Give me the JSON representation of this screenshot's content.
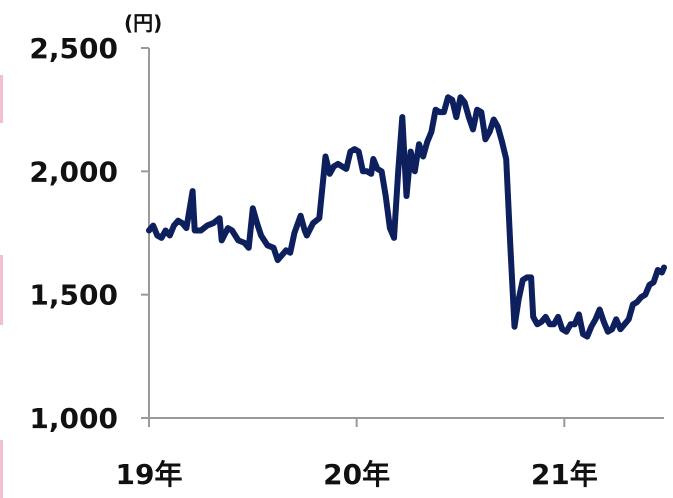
{
  "chart_data": {
    "type": "line",
    "title": "",
    "unit_label": "(円)",
    "xlabel": "",
    "ylabel": "",
    "ylim": [
      1000,
      2500
    ],
    "yticks": [
      {
        "value": 1000,
        "label": "1,000"
      },
      {
        "value": 1500,
        "label": "1,500"
      },
      {
        "value": 2000,
        "label": "2,000"
      },
      {
        "value": 2500,
        "label": "2,500"
      }
    ],
    "xticks": [
      {
        "value": 2019,
        "label": "19年"
      },
      {
        "value": 2020,
        "label": "20年"
      },
      {
        "value": 2021,
        "label": "21年"
      }
    ],
    "xlim": [
      2019.0,
      2021.48
    ],
    "grid": false,
    "line_color": "#0d1f5c",
    "series": [
      {
        "name": "",
        "points": [
          [
            2019.0,
            1760
          ],
          [
            2019.02,
            1780
          ],
          [
            2019.04,
            1740
          ],
          [
            2019.06,
            1730
          ],
          [
            2019.08,
            1760
          ],
          [
            2019.1,
            1740
          ],
          [
            2019.12,
            1780
          ],
          [
            2019.14,
            1800
          ],
          [
            2019.16,
            1790
          ],
          [
            2019.18,
            1770
          ],
          [
            2019.21,
            1920
          ],
          [
            2019.22,
            1760
          ],
          [
            2019.25,
            1760
          ],
          [
            2019.28,
            1780
          ],
          [
            2019.31,
            1790
          ],
          [
            2019.34,
            1810
          ],
          [
            2019.35,
            1720
          ],
          [
            2019.38,
            1770
          ],
          [
            2019.4,
            1760
          ],
          [
            2019.43,
            1720
          ],
          [
            2019.46,
            1710
          ],
          [
            2019.48,
            1690
          ],
          [
            2019.5,
            1850
          ],
          [
            2019.52,
            1790
          ],
          [
            2019.54,
            1740
          ],
          [
            2019.57,
            1700
          ],
          [
            2019.6,
            1690
          ],
          [
            2019.62,
            1640
          ],
          [
            2019.64,
            1660
          ],
          [
            2019.66,
            1680
          ],
          [
            2019.68,
            1670
          ],
          [
            2019.7,
            1750
          ],
          [
            2019.73,
            1820
          ],
          [
            2019.75,
            1760
          ],
          [
            2019.76,
            1740
          ],
          [
            2019.79,
            1790
          ],
          [
            2019.82,
            1810
          ],
          [
            2019.85,
            2060
          ],
          [
            2019.87,
            1990
          ],
          [
            2019.89,
            2020
          ],
          [
            2019.91,
            2030
          ],
          [
            2019.93,
            2020
          ],
          [
            2019.95,
            2010
          ],
          [
            2019.97,
            2080
          ],
          [
            2019.99,
            2090
          ],
          [
            2020.01,
            2080
          ],
          [
            2020.03,
            2000
          ],
          [
            2020.05,
            2000
          ],
          [
            2020.07,
            1990
          ],
          [
            2020.08,
            2050
          ],
          [
            2020.1,
            2010
          ],
          [
            2020.12,
            2000
          ],
          [
            2020.14,
            1900
          ],
          [
            2020.16,
            1770
          ],
          [
            2020.18,
            1730
          ],
          [
            2020.2,
            2000
          ],
          [
            2020.22,
            2220
          ],
          [
            2020.24,
            1900
          ],
          [
            2020.26,
            2080
          ],
          [
            2020.28,
            2000
          ],
          [
            2020.3,
            2110
          ],
          [
            2020.32,
            2060
          ],
          [
            2020.34,
            2120
          ],
          [
            2020.36,
            2160
          ],
          [
            2020.38,
            2250
          ],
          [
            2020.4,
            2240
          ],
          [
            2020.42,
            2240
          ],
          [
            2020.44,
            2300
          ],
          [
            2020.46,
            2290
          ],
          [
            2020.48,
            2220
          ],
          [
            2020.5,
            2300
          ],
          [
            2020.52,
            2280
          ],
          [
            2020.54,
            2220
          ],
          [
            2020.56,
            2170
          ],
          [
            2020.58,
            2250
          ],
          [
            2020.6,
            2240
          ],
          [
            2020.62,
            2130
          ],
          [
            2020.64,
            2160
          ],
          [
            2020.66,
            2210
          ],
          [
            2020.68,
            2180
          ],
          [
            2020.7,
            2120
          ],
          [
            2020.72,
            2050
          ],
          [
            2020.74,
            1700
          ],
          [
            2020.76,
            1370
          ],
          [
            2020.78,
            1480
          ],
          [
            2020.8,
            1560
          ],
          [
            2020.82,
            1570
          ],
          [
            2020.84,
            1570
          ],
          [
            2020.85,
            1410
          ],
          [
            2020.87,
            1380
          ],
          [
            2020.89,
            1390
          ],
          [
            2020.91,
            1410
          ],
          [
            2020.93,
            1380
          ],
          [
            2020.95,
            1380
          ],
          [
            2020.97,
            1410
          ],
          [
            2020.99,
            1360
          ],
          [
            2021.01,
            1350
          ],
          [
            2021.03,
            1380
          ],
          [
            2021.05,
            1380
          ],
          [
            2021.07,
            1420
          ],
          [
            2021.09,
            1340
          ],
          [
            2021.11,
            1330
          ],
          [
            2021.13,
            1370
          ],
          [
            2021.15,
            1400
          ],
          [
            2021.17,
            1440
          ],
          [
            2021.19,
            1390
          ],
          [
            2021.21,
            1350
          ],
          [
            2021.23,
            1360
          ],
          [
            2021.25,
            1400
          ],
          [
            2021.27,
            1360
          ],
          [
            2021.29,
            1380
          ],
          [
            2021.31,
            1400
          ],
          [
            2021.33,
            1460
          ],
          [
            2021.35,
            1470
          ],
          [
            2021.37,
            1490
          ],
          [
            2021.39,
            1500
          ],
          [
            2021.41,
            1540
          ],
          [
            2021.43,
            1550
          ],
          [
            2021.45,
            1600
          ],
          [
            2021.47,
            1590
          ],
          [
            2021.48,
            1610
          ]
        ]
      }
    ]
  }
}
